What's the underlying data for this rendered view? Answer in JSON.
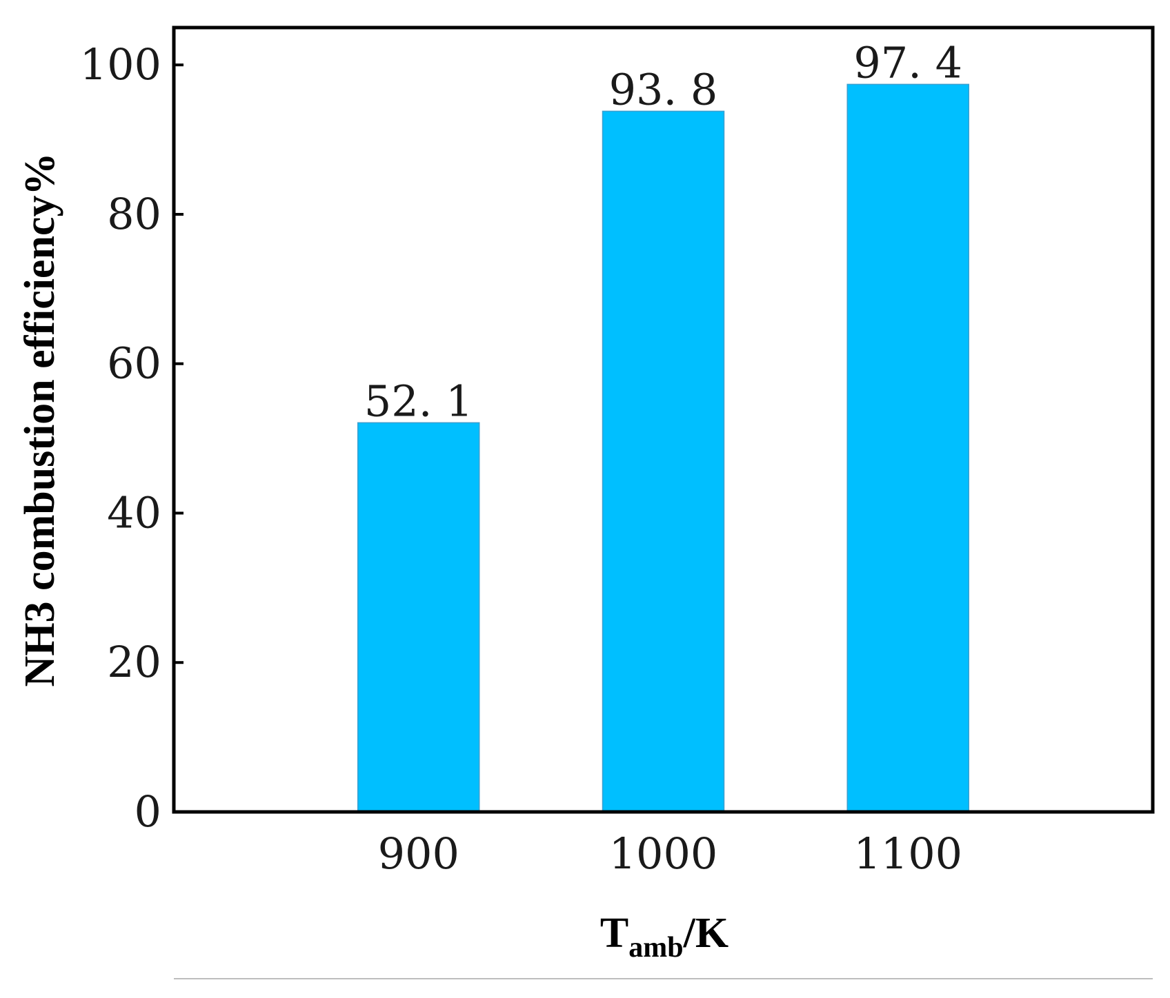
{
  "chart_data": {
    "type": "bar",
    "categories": [
      "900",
      "1000",
      "1100"
    ],
    "values": [
      52.1,
      93.8,
      97.4
    ],
    "value_labels": [
      "52. 1",
      "93. 8",
      "97. 4"
    ],
    "ylim": [
      0,
      105
    ],
    "yticks": [
      0,
      20,
      40,
      60,
      80,
      100
    ],
    "ylabel": "NH3 combustion efficiency%",
    "xlabel": {
      "main": "T",
      "subscript": "amb",
      "suffix": "/K"
    },
    "bar_color": "#00BFFF",
    "grid": false,
    "legend": "none"
  }
}
